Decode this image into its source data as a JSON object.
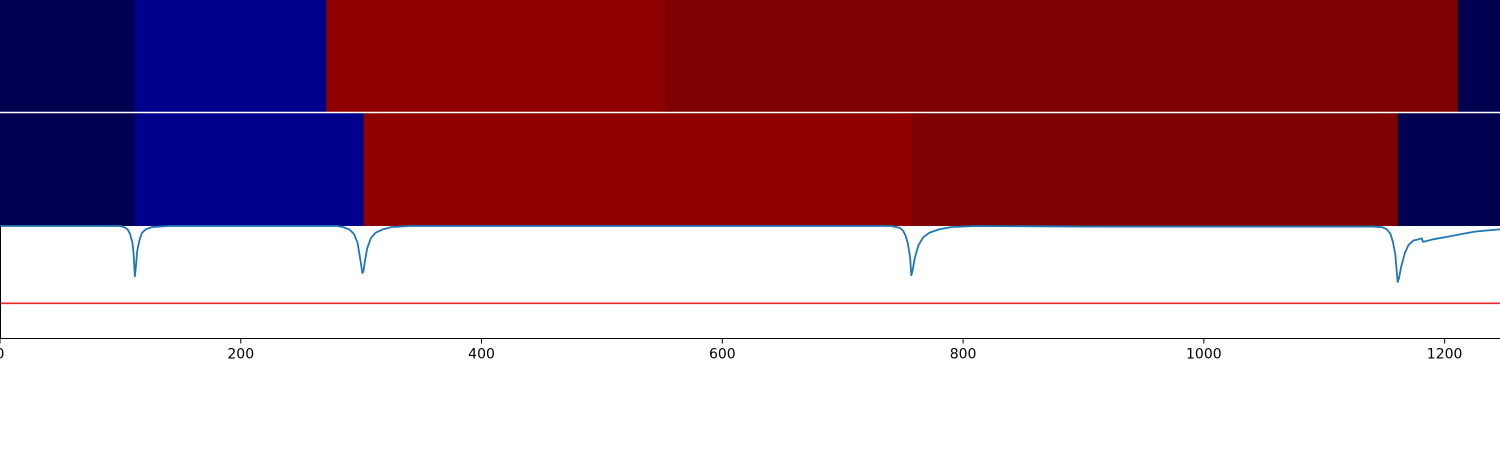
{
  "chart_data": [
    {
      "type": "heatmap",
      "panel": "segmentation-a",
      "x_range": [
        0,
        1246
      ],
      "segments": [
        {
          "start": 0,
          "end": 112,
          "color": "#000050"
        },
        {
          "start": 112,
          "end": 271,
          "color": "#00008b"
        },
        {
          "start": 271,
          "end": 552,
          "color": "#8f0000"
        },
        {
          "start": 552,
          "end": 1211,
          "color": "#7f0000"
        },
        {
          "start": 1211,
          "end": 1246,
          "color": "#000050"
        }
      ]
    },
    {
      "type": "heatmap",
      "panel": "segmentation-b",
      "x_range": [
        0,
        1246
      ],
      "segments": [
        {
          "start": 0,
          "end": 112,
          "color": "#000050"
        },
        {
          "start": 112,
          "end": 302,
          "color": "#00008b"
        },
        {
          "start": 302,
          "end": 757,
          "color": "#8f0000"
        },
        {
          "start": 757,
          "end": 1161,
          "color": "#7f0000"
        },
        {
          "start": 1161,
          "end": 1246,
          "color": "#000050"
        }
      ]
    },
    {
      "type": "line",
      "panel": "boundary-score",
      "xlim": [
        0,
        1246
      ],
      "ylim": [
        0,
        1
      ],
      "threshold": 0.31,
      "threshold_color": "#e8282a",
      "line_color": "#1f77b4",
      "x_ticks": [
        0,
        200,
        400,
        600,
        800,
        1000,
        1200
      ],
      "series": [
        {
          "x": [
            0,
            100,
            103,
            106,
            108,
            110,
            111,
            112,
            113,
            114,
            116,
            118,
            121,
            126,
            140,
            190,
            250,
            280,
            285,
            290,
            294,
            297,
            299,
            301,
            302,
            303,
            305,
            308,
            312,
            318,
            325,
            340,
            400,
            500,
            600,
            700,
            740,
            745,
            748,
            750,
            752,
            754,
            756,
            757,
            758,
            760,
            763,
            767,
            772,
            780,
            790,
            810,
            900,
            1000,
            1100,
            1140,
            1148,
            1152,
            1155,
            1157,
            1159,
            1160,
            1161,
            1162,
            1164,
            1167,
            1170,
            1174,
            1178,
            1181,
            1182,
            1183,
            1190,
            1200,
            1215,
            1225,
            1235,
            1246
          ],
          "y": [
            1.0,
            1.0,
            0.99,
            0.97,
            0.93,
            0.85,
            0.75,
            0.55,
            0.65,
            0.78,
            0.88,
            0.94,
            0.97,
            0.99,
            1.0,
            1.0,
            1.0,
            1.0,
            0.99,
            0.97,
            0.93,
            0.85,
            0.72,
            0.58,
            0.6,
            0.68,
            0.8,
            0.89,
            0.94,
            0.97,
            0.99,
            1.0,
            1.0,
            1.0,
            1.0,
            1.0,
            1.0,
            0.99,
            0.98,
            0.96,
            0.92,
            0.85,
            0.72,
            0.56,
            0.6,
            0.72,
            0.83,
            0.9,
            0.94,
            0.97,
            0.99,
            1.0,
            0.995,
            0.995,
            0.995,
            0.995,
            0.99,
            0.97,
            0.93,
            0.86,
            0.75,
            0.62,
            0.5,
            0.53,
            0.64,
            0.76,
            0.83,
            0.87,
            0.88,
            0.89,
            0.86,
            0.86,
            0.88,
            0.9,
            0.93,
            0.95,
            0.96,
            0.97
          ]
        }
      ]
    }
  ]
}
